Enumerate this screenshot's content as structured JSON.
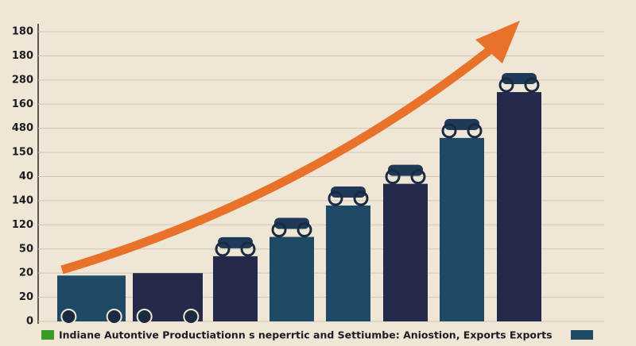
{
  "chart_data": {
    "type": "bar",
    "categories": [
      null,
      null,
      null,
      null,
      null,
      null,
      null,
      null
    ],
    "values": [
      1.9,
      2.0,
      2.7,
      3.5,
      4.8,
      5.7,
      7.6,
      9.5
    ],
    "colors": [
      "#1f4a66",
      "#252a4a",
      "#252a4a",
      "#1f4a66",
      "#1f4a66",
      "#252a4a",
      "#1f4a66",
      "#252a4a"
    ],
    "ylim": [
      0,
      12
    ],
    "yticks": [
      {
        "value": 0,
        "label": "0"
      },
      {
        "value": 1,
        "label": "20"
      },
      {
        "value": 2,
        "label": "20"
      },
      {
        "value": 3,
        "label": "50"
      },
      {
        "value": 4,
        "label": "120"
      },
      {
        "value": 5,
        "label": "140"
      },
      {
        "value": 6,
        "label": "40"
      },
      {
        "value": 7,
        "label": "150"
      },
      {
        "value": 8,
        "label": "480"
      },
      {
        "value": 9,
        "label": "160"
      },
      {
        "value": 10,
        "label": "280"
      },
      {
        "value": 11,
        "label": "180"
      },
      {
        "value": 12,
        "label": "180"
      }
    ],
    "grid": true,
    "caption": "Indiane Autontive Productiationn s neperrtic and Settiumbe: Aniostion, Exports Exports"
  }
}
